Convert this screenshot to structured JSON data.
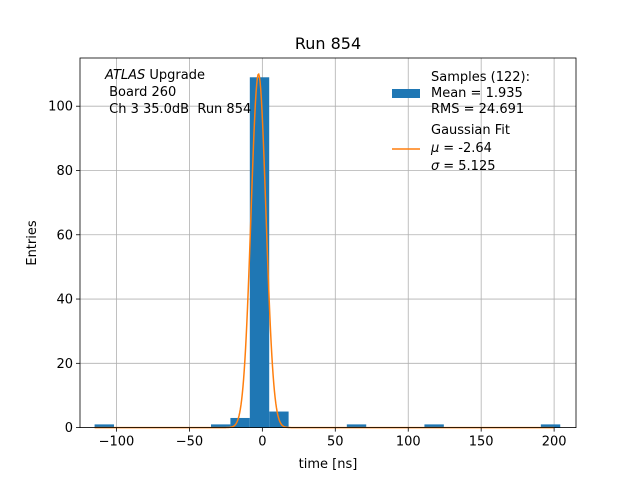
{
  "chart_data": {
    "type": "bar",
    "title": "Run 854",
    "xlabel": "time [ns]",
    "ylabel": "Entries",
    "xlim": [
      -125,
      215
    ],
    "ylim": [
      0,
      115
    ],
    "xticks": [
      -100,
      -50,
      0,
      50,
      100,
      150,
      200
    ],
    "yticks": [
      0,
      20,
      40,
      60,
      80,
      100
    ],
    "grid": true,
    "bar_color": "#1f77b4",
    "fit_color": "#ff7f0e",
    "annotation": {
      "line1_italic": "ATLAS",
      "line1_rest": " Upgrade",
      "line2": " Board 260",
      "line3": " Ch 3 35.0dB  Run 854"
    },
    "histogram": {
      "bin_width": 13.3,
      "bins": [
        {
          "left": -115.0,
          "count": 1
        },
        {
          "left": -35.2,
          "count": 1
        },
        {
          "left": -21.9,
          "count": 3
        },
        {
          "left": -8.6,
          "count": 109
        },
        {
          "left": 4.7,
          "count": 5
        },
        {
          "left": 57.9,
          "count": 1
        },
        {
          "left": 111.1,
          "count": 1
        },
        {
          "left": 190.9,
          "count": 1
        }
      ]
    },
    "fit": {
      "mu": -2.64,
      "sigma": 5.125,
      "amplitude": 110
    },
    "legend": {
      "position": "top-right",
      "samples_title": "Samples (122):",
      "samples_mean": "Mean = 1.935",
      "samples_rms": "RMS = 24.691",
      "fit_title": "Gaussian Fit",
      "fit_mu": "= -2.64",
      "fit_sigma": "= 5.125",
      "mu_symbol": "μ",
      "sigma_symbol": "σ"
    }
  }
}
